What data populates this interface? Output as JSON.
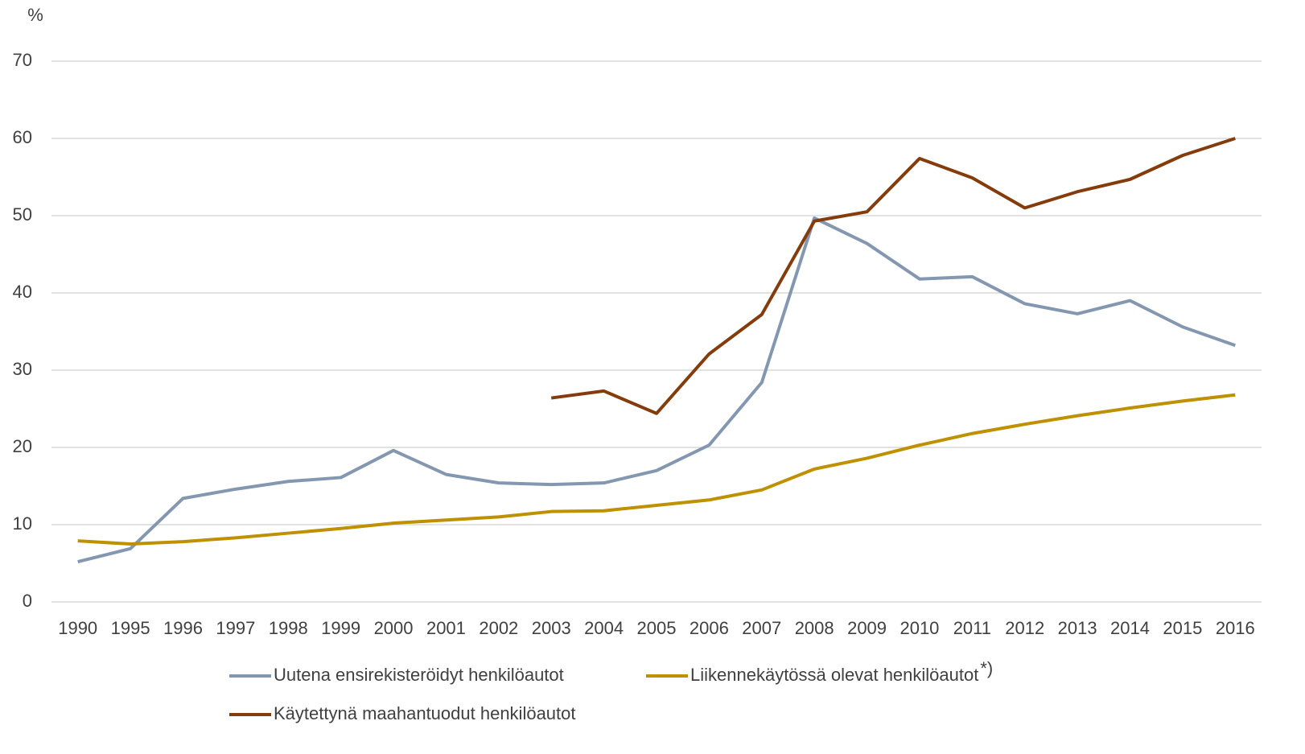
{
  "chart_data": {
    "type": "line",
    "y_label": "%",
    "categories": [
      "1990",
      "1995",
      "1996",
      "1997",
      "1998",
      "1999",
      "2000",
      "2001",
      "2002",
      "2003",
      "2004",
      "2005",
      "2006",
      "2007",
      "2008",
      "2009",
      "2010",
      "2011",
      "2012",
      "2013",
      "2014",
      "2015",
      "2016"
    ],
    "ylim": [
      0,
      70
    ],
    "yticks": [
      0,
      10,
      20,
      30,
      40,
      50,
      60,
      70
    ],
    "grid": true,
    "legend": "bottom",
    "series": [
      {
        "name": "Uutena ensirekisteröidyt henkilöautot",
        "color": "#8497b0",
        "values": [
          5.2,
          6.9,
          13.4,
          14.6,
          15.6,
          16.1,
          19.6,
          16.5,
          15.4,
          15.2,
          15.4,
          17.0,
          20.3,
          28.4,
          49.7,
          46.4,
          41.8,
          42.1,
          38.6,
          37.3,
          39.0,
          35.6,
          33.2
        ]
      },
      {
        "name": "Liikennekäytössä olevat henkilöautot",
        "name_superscript": "*)",
        "color": "#bf9000",
        "values": [
          7.9,
          7.5,
          7.8,
          8.3,
          8.9,
          9.5,
          10.2,
          10.6,
          11.0,
          11.7,
          11.8,
          12.5,
          13.2,
          14.5,
          17.2,
          18.6,
          20.3,
          21.8,
          23.0,
          24.1,
          25.1,
          26.0,
          26.8
        ]
      },
      {
        "name": "Käytettynä maahantuodut henkilöautot",
        "color": "#843c0c",
        "values": [
          null,
          null,
          null,
          null,
          null,
          null,
          null,
          null,
          null,
          26.4,
          27.3,
          24.4,
          32.1,
          37.2,
          49.3,
          50.5,
          57.4,
          54.9,
          51.0,
          53.1,
          54.7,
          57.8,
          60.0
        ]
      }
    ]
  }
}
